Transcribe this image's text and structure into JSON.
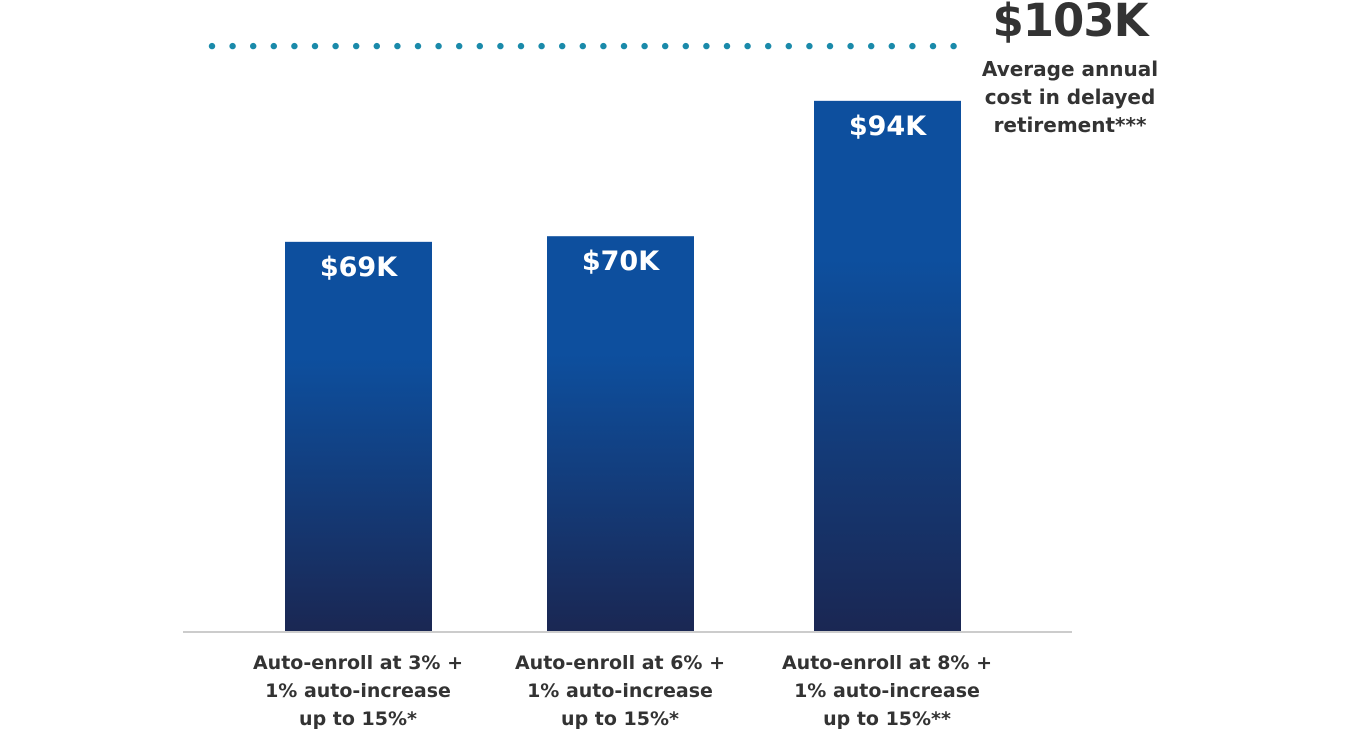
{
  "chart_data": {
    "type": "bar",
    "categories": [
      [
        "Auto-enroll at 3% +",
        "1% auto-increase",
        "up to 15%*"
      ],
      [
        "Auto-enroll at 6% +",
        "1% auto-increase",
        "up to 15%*"
      ],
      [
        "Auto-enroll at 8% +",
        "1% auto-increase",
        "up to 15%**"
      ]
    ],
    "values": [
      69,
      70,
      94
    ],
    "value_labels": [
      "$69K",
      "$70K",
      "$94K"
    ],
    "unit": "$K",
    "ylim": [
      0,
      103
    ],
    "grid": false,
    "reference_line": {
      "value": 103,
      "value_label": "$103K",
      "label": [
        "Average annual",
        "cost in delayed",
        "retirement***"
      ],
      "style": "dotted",
      "color": "#1a8aaa"
    },
    "colors": {
      "bar_top": "#0d4f9e",
      "bar_bottom": "#1a2753",
      "text": "#333333",
      "axis": "#cccccc"
    }
  }
}
